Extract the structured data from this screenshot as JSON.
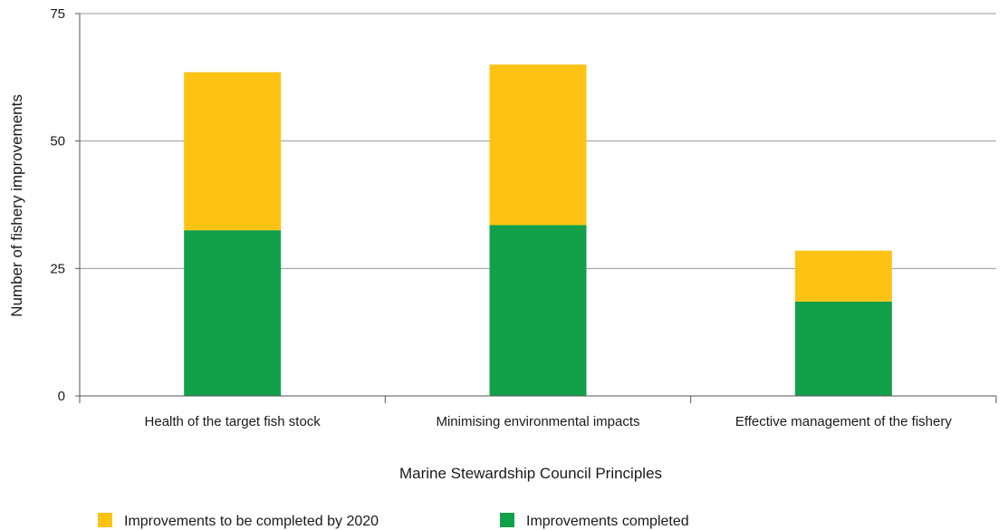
{
  "chart_data": {
    "type": "bar",
    "stacked": true,
    "categories": [
      "Health of the target fish stock",
      "Minimising environmental impacts",
      "Effective management of the fishery"
    ],
    "series": [
      {
        "name": "Improvements completed",
        "values": [
          32.5,
          33.5,
          18.5
        ],
        "color": "#12a04a"
      },
      {
        "name": "Improvements to be completed by 2020",
        "values": [
          31,
          31.5,
          10
        ],
        "color": "#fcc314"
      }
    ],
    "xlabel": "Marine Stewardship Council Principles",
    "ylabel": "Number of fishery improvements",
    "ylim": [
      0,
      75
    ],
    "yticks": [
      "0",
      "25",
      "50",
      "75"
    ],
    "grid": true,
    "legend_placement": "bottom-left",
    "legend_order": [
      1,
      0
    ],
    "colors": {
      "axis": "#555555",
      "grid": "#9a9a9a"
    }
  }
}
